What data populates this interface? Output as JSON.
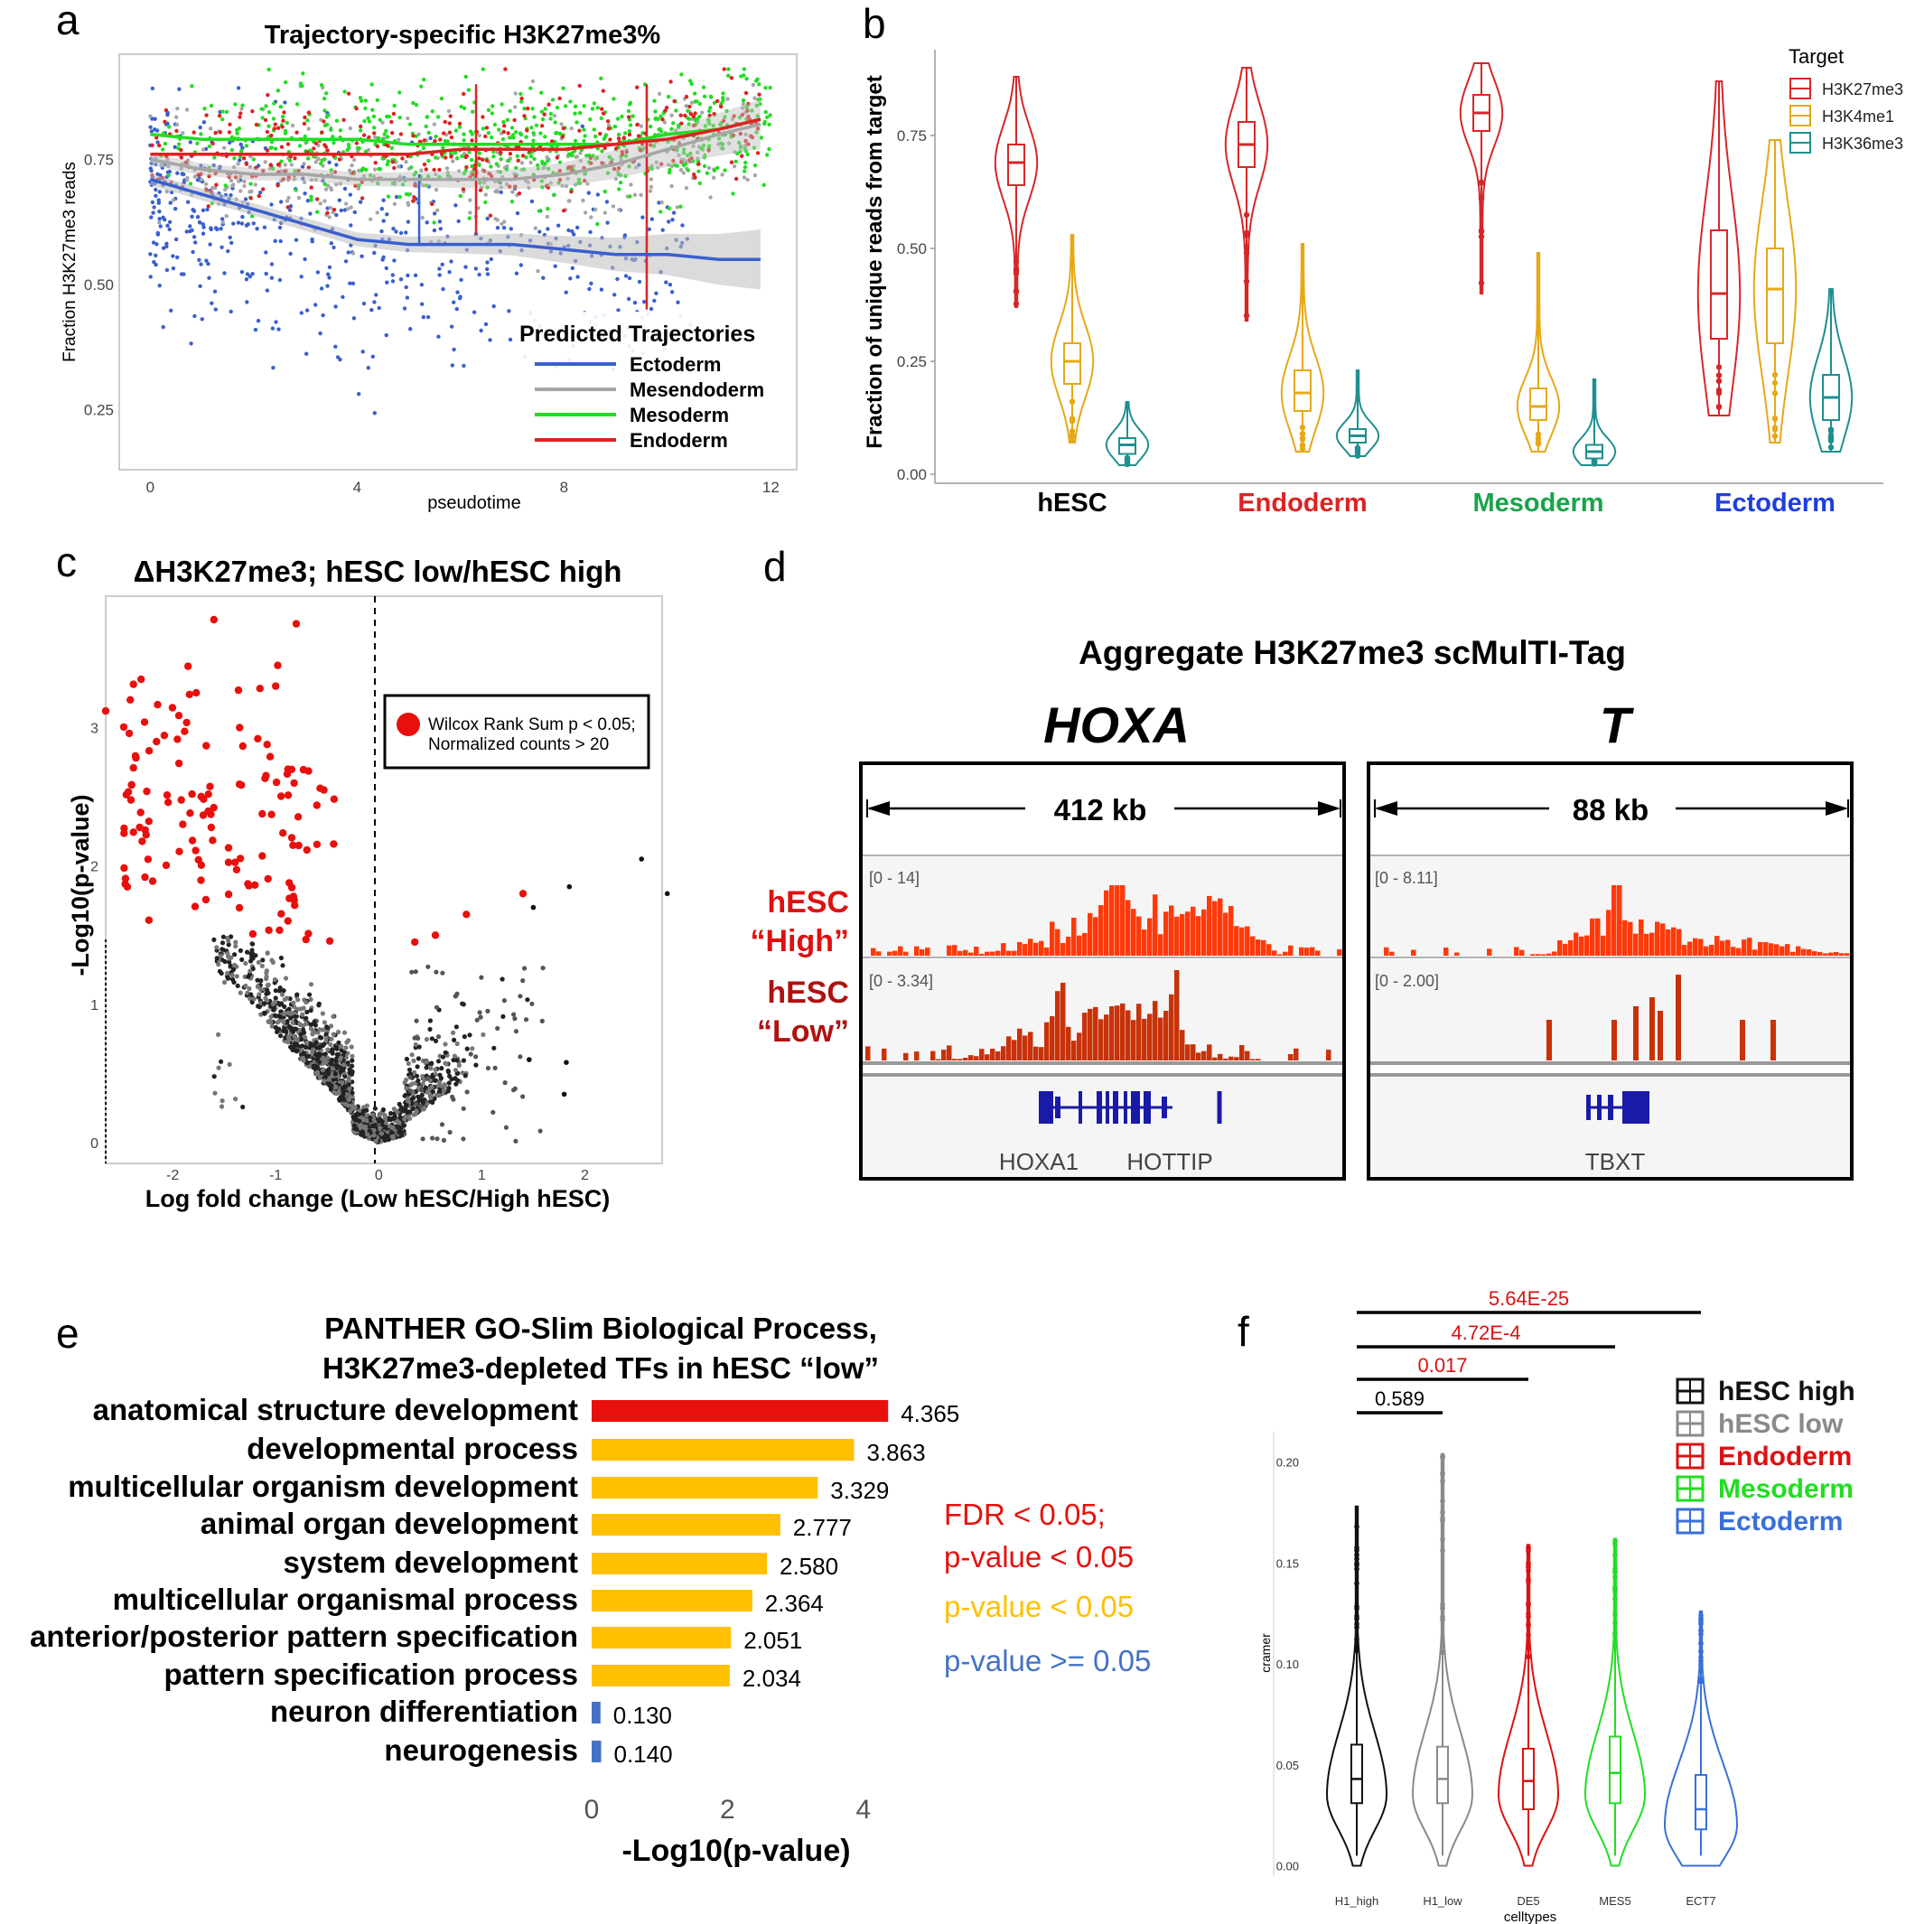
{
  "panels": {
    "a": "a",
    "b": "b",
    "c": "c",
    "d": "d",
    "e": "e",
    "f": "f"
  },
  "colors": {
    "ectoderm": "#3a5fcd",
    "mesendoderm": "#a6a6a6",
    "mesoderm": "#22dd22",
    "endoderm": "#dd2222",
    "h3k27": "#d62728",
    "h3k4": "#e6a817",
    "h3k36": "#1f8f8f",
    "red": "#e8100c",
    "yellow": "#ffc000",
    "blue": "#4472c4",
    "gray": "#888888"
  },
  "chart_data": [
    {
      "id": "a",
      "type": "scatter",
      "title": "Trajectory-specific H3K27me3%",
      "xlabel": "pseudotime",
      "ylabel": "Fraction H3K27me3 reads",
      "xlim": [
        -0.6,
        12.5
      ],
      "ylim": [
        0.13,
        0.96
      ],
      "xticks": [
        "0",
        "4",
        "8",
        "12"
      ],
      "yticks": [
        "0.25",
        "0.50",
        "0.75"
      ],
      "legend_title": "Predicted Trajectories",
      "series": [
        {
          "name": "Ectoderm",
          "x": [
            0,
            1,
            2,
            3,
            4,
            5,
            6,
            7,
            8,
            9,
            10,
            11,
            11.8
          ],
          "y": [
            0.71,
            0.68,
            0.65,
            0.62,
            0.59,
            0.58,
            0.58,
            0.58,
            0.57,
            0.56,
            0.56,
            0.55,
            0.55
          ]
        },
        {
          "name": "Mesendoderm",
          "x": [
            0,
            1,
            2,
            3,
            4,
            5,
            6,
            7,
            8,
            9,
            10,
            11,
            11.8
          ],
          "y": [
            0.75,
            0.73,
            0.72,
            0.72,
            0.71,
            0.71,
            0.71,
            0.71,
            0.72,
            0.74,
            0.77,
            0.8,
            0.82
          ]
        },
        {
          "name": "Mesoderm",
          "x": [
            0,
            1,
            2,
            3,
            4,
            5,
            6,
            7,
            8,
            9,
            10,
            11,
            11.8
          ],
          "y": [
            0.8,
            0.79,
            0.79,
            0.79,
            0.79,
            0.78,
            0.78,
            0.78,
            0.78,
            0.78,
            0.8,
            0.81,
            0.83
          ]
        },
        {
          "name": "Endoderm",
          "x": [
            0,
            1,
            2,
            3,
            4,
            5,
            6,
            7,
            8,
            9,
            10,
            11,
            11.8
          ],
          "y": [
            0.76,
            0.76,
            0.76,
            0.76,
            0.76,
            0.76,
            0.77,
            0.77,
            0.77,
            0.78,
            0.79,
            0.81,
            0.83
          ]
        }
      ]
    },
    {
      "id": "b",
      "type": "violin",
      "ylabel": "Fraction of unique reads from target",
      "ylim": [
        -0.02,
        0.94
      ],
      "yticks": [
        "0.00",
        "0.25",
        "0.50",
        "0.75"
      ],
      "legend_title": "Target",
      "targets": [
        "H3K27me3",
        "H3K4me1",
        "H3K36me3"
      ],
      "groups": [
        {
          "name": "hESC",
          "median": [
            0.69,
            0.25,
            0.065
          ],
          "q1": [
            0.64,
            0.2,
            0.045
          ],
          "q3": [
            0.73,
            0.29,
            0.08
          ],
          "min": [
            0.37,
            0.07,
            0.02
          ],
          "max": [
            0.88,
            0.53,
            0.16
          ]
        },
        {
          "name": "Endoderm",
          "median": [
            0.73,
            0.18,
            0.085
          ],
          "q1": [
            0.68,
            0.14,
            0.07
          ],
          "q3": [
            0.78,
            0.23,
            0.1
          ],
          "min": [
            0.34,
            0.05,
            0.04
          ],
          "max": [
            0.9,
            0.51,
            0.23
          ]
        },
        {
          "name": "Mesoderm",
          "median": [
            0.8,
            0.15,
            0.05
          ],
          "q1": [
            0.76,
            0.12,
            0.035
          ],
          "q3": [
            0.84,
            0.19,
            0.065
          ],
          "min": [
            0.4,
            0.05,
            0.02
          ],
          "max": [
            0.91,
            0.49,
            0.21
          ]
        },
        {
          "name": "Ectoderm",
          "median": [
            0.4,
            0.41,
            0.17
          ],
          "q1": [
            0.3,
            0.29,
            0.12
          ],
          "q3": [
            0.54,
            0.5,
            0.22
          ],
          "min": [
            0.13,
            0.07,
            0.05
          ],
          "max": [
            0.87,
            0.74,
            0.41
          ]
        }
      ]
    },
    {
      "id": "c",
      "type": "scatter",
      "title": "ΔH3K27me3; hESC low/hESC high",
      "xlabel": "Log fold change (Low hESC/High hESC)",
      "ylabel": "-Log10(p-value)",
      "xlim": [
        -2.65,
        2.75
      ],
      "ylim": [
        -0.15,
        3.95
      ],
      "xticks": [
        "-2",
        "-1",
        "0",
        "1",
        "2"
      ],
      "yticks": [
        "0",
        "1",
        "2",
        "3"
      ],
      "legend": [
        "Wilcox Rank Sum p < 0.05;",
        "Normalized counts > 20"
      ]
    },
    {
      "id": "d",
      "type": "genome-track",
      "title": "Aggregate H3K27me3 scMulTI-Tag",
      "loci": [
        {
          "name": "HOXA",
          "size": "412 kb",
          "high_range": "[0 - 14]",
          "low_range": "[0 - 3.34]",
          "genes": [
            "HOXA1",
            "HOTTIP"
          ]
        },
        {
          "name": "T",
          "size": "88 kb",
          "high_range": "[0 - 8.11]",
          "low_range": "[0 - 2.00]",
          "genes": [
            "TBXT"
          ]
        }
      ],
      "row_labels": {
        "high_a": "hESC",
        "high_b": "“High”",
        "low_a": "hESC",
        "low_b": "“Low”"
      }
    },
    {
      "id": "e",
      "type": "bar",
      "title_line1": "PANTHER GO-Slim Biological Process,",
      "title_line2": "H3K27me3-depleted TFs in hESC “low”",
      "xlabel": "-Log10(p-value)",
      "xlim": [
        0,
        4.6
      ],
      "xticks": [
        "0",
        "2",
        "4"
      ],
      "categories": [
        "anatomical structure development",
        "developmental process",
        "multicellular organism development",
        "animal organ development",
        "system development",
        "multicellular organismal process",
        "anterior/posterior pattern specification",
        "pattern specification process",
        "neuron differentiation",
        "neurogenesis"
      ],
      "values": [
        4.365,
        3.863,
        3.329,
        2.777,
        2.58,
        2.364,
        2.051,
        2.034,
        0.13,
        0.14
      ],
      "labels": [
        "4.365",
        "3.863",
        "3.329",
        "2.777",
        "2.580",
        "2.364",
        "2.051",
        "2.034",
        "0.130",
        "0.140"
      ],
      "bar_class": [
        "red",
        "yellow",
        "yellow",
        "yellow",
        "yellow",
        "yellow",
        "yellow",
        "yellow",
        "blue",
        "blue"
      ],
      "legend": {
        "red_1": "FDR < 0.05;",
        "red_2": "p-value < 0.05",
        "yellow": "p-value < 0.05",
        "blue": "p-value >= 0.05"
      }
    },
    {
      "id": "f",
      "type": "violin",
      "xlabel": "celltypes",
      "ylabel": "cramer",
      "ylim": [
        -0.002,
        0.215
      ],
      "yticks": [
        "0.00",
        "0.05",
        "0.10",
        "0.15",
        "0.20"
      ],
      "categories": [
        "H1_high",
        "H1_low",
        "DE5",
        "MES5",
        "ECT7"
      ],
      "legend": [
        "hESC high",
        "hESC low",
        "Endoderm",
        "Mesoderm",
        "Ectoderm"
      ],
      "median": [
        0.043,
        0.043,
        0.042,
        0.046,
        0.028
      ],
      "q1": [
        0.031,
        0.031,
        0.028,
        0.031,
        0.018
      ],
      "q3": [
        0.06,
        0.059,
        0.058,
        0.064,
        0.045
      ],
      "max": [
        0.178,
        0.204,
        0.159,
        0.162,
        0.126
      ],
      "comparisons": [
        {
          "from": "H1_high",
          "to": "H1_low",
          "p": "0.589",
          "sig": false
        },
        {
          "from": "H1_high",
          "to": "DE5",
          "p": "0.017",
          "sig": true
        },
        {
          "from": "H1_high",
          "to": "MES5",
          "p": "4.72E-4",
          "sig": true
        },
        {
          "from": "H1_high",
          "to": "ECT7",
          "p": "5.64E-25",
          "sig": true
        }
      ]
    }
  ]
}
